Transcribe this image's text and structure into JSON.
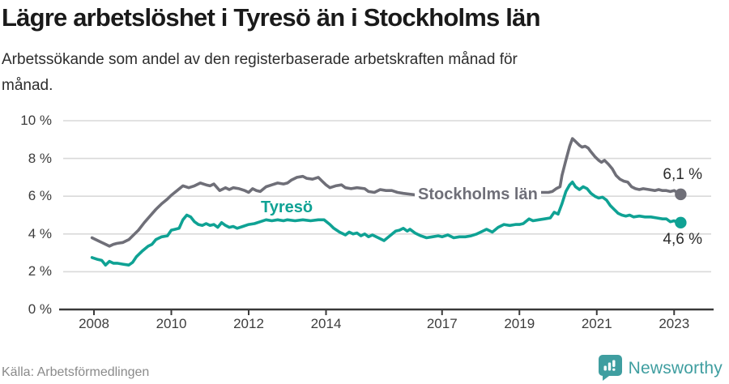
{
  "header": {
    "title": "Lägre arbetslöshet i Tyresö än i Stockholms län",
    "subtitle": "Arbetssökande som andel av den registerbaserade arbetskraften månad för\nmånad."
  },
  "chart_data": {
    "type": "line",
    "x_unit": "decimal_year",
    "ylim": [
      0,
      10
    ],
    "xlim": [
      2007.9,
      2023.9
    ],
    "grid": "horizontal",
    "y_ticks": [
      {
        "v": 0,
        "label": "0 %"
      },
      {
        "v": 2,
        "label": "2 %"
      },
      {
        "v": 4,
        "label": "4 %"
      },
      {
        "v": 6,
        "label": "6 %"
      },
      {
        "v": 8,
        "label": "8 %"
      },
      {
        "v": 10,
        "label": "10 %"
      }
    ],
    "x_ticks": [
      {
        "v": 2008,
        "label": "2008"
      },
      {
        "v": 2010,
        "label": "2010"
      },
      {
        "v": 2012,
        "label": "2012"
      },
      {
        "v": 2014,
        "label": "2014"
      },
      {
        "v": 2017,
        "label": "2017"
      },
      {
        "v": 2019,
        "label": "2019"
      },
      {
        "v": 2021,
        "label": "2021"
      },
      {
        "v": 2023,
        "label": "2023"
      }
    ],
    "series": [
      {
        "name": "Stockholms län",
        "color": "#6f6f78",
        "end_label": "6,1 %",
        "end_value": 6.1,
        "points": [
          [
            2007.95,
            3.8
          ],
          [
            2008.1,
            3.65
          ],
          [
            2008.25,
            3.5
          ],
          [
            2008.4,
            3.35
          ],
          [
            2008.5,
            3.45
          ],
          [
            2008.6,
            3.5
          ],
          [
            2008.75,
            3.55
          ],
          [
            2008.9,
            3.7
          ],
          [
            2009.0,
            3.9
          ],
          [
            2009.15,
            4.2
          ],
          [
            2009.3,
            4.6
          ],
          [
            2009.45,
            4.95
          ],
          [
            2009.6,
            5.3
          ],
          [
            2009.75,
            5.6
          ],
          [
            2009.9,
            5.85
          ],
          [
            2010.0,
            6.05
          ],
          [
            2010.15,
            6.3
          ],
          [
            2010.3,
            6.55
          ],
          [
            2010.45,
            6.45
          ],
          [
            2010.6,
            6.55
          ],
          [
            2010.75,
            6.7
          ],
          [
            2010.9,
            6.6
          ],
          [
            2011.0,
            6.55
          ],
          [
            2011.1,
            6.65
          ],
          [
            2011.25,
            6.3
          ],
          [
            2011.4,
            6.45
          ],
          [
            2011.5,
            6.35
          ],
          [
            2011.6,
            6.45
          ],
          [
            2011.75,
            6.4
          ],
          [
            2011.9,
            6.3
          ],
          [
            2012.0,
            6.2
          ],
          [
            2012.1,
            6.4
          ],
          [
            2012.2,
            6.3
          ],
          [
            2012.3,
            6.25
          ],
          [
            2012.45,
            6.5
          ],
          [
            2012.6,
            6.6
          ],
          [
            2012.75,
            6.7
          ],
          [
            2012.9,
            6.65
          ],
          [
            2013.0,
            6.7
          ],
          [
            2013.1,
            6.85
          ],
          [
            2013.25,
            7.0
          ],
          [
            2013.4,
            7.05
          ],
          [
            2013.5,
            6.95
          ],
          [
            2013.65,
            6.9
          ],
          [
            2013.8,
            7.0
          ],
          [
            2013.9,
            6.8
          ],
          [
            2014.0,
            6.6
          ],
          [
            2014.1,
            6.45
          ],
          [
            2014.25,
            6.55
          ],
          [
            2014.4,
            6.6
          ],
          [
            2014.5,
            6.45
          ],
          [
            2014.65,
            6.4
          ],
          [
            2014.8,
            6.45
          ],
          [
            2015.0,
            6.4
          ],
          [
            2015.1,
            6.25
          ],
          [
            2015.25,
            6.2
          ],
          [
            2015.4,
            6.35
          ],
          [
            2015.55,
            6.3
          ],
          [
            2015.7,
            6.3
          ],
          [
            2015.85,
            6.2
          ],
          [
            2016.0,
            6.15
          ],
          [
            2016.2,
            6.1
          ],
          [
            2016.4,
            6.05
          ],
          [
            2016.6,
            6.1
          ],
          [
            2016.8,
            6.05
          ],
          [
            2017.0,
            6.05
          ],
          [
            2017.2,
            6.0
          ],
          [
            2017.4,
            6.05
          ],
          [
            2017.6,
            6.0
          ],
          [
            2017.8,
            5.95
          ],
          [
            2018.0,
            6.0
          ],
          [
            2018.2,
            5.95
          ],
          [
            2018.4,
            6.0
          ],
          [
            2018.6,
            6.05
          ],
          [
            2018.8,
            6.1
          ],
          [
            2019.0,
            6.1
          ],
          [
            2019.2,
            6.15
          ],
          [
            2019.4,
            6.2
          ],
          [
            2019.6,
            6.2
          ],
          [
            2019.75,
            6.2
          ],
          [
            2019.85,
            6.25
          ],
          [
            2019.95,
            6.4
          ],
          [
            2020.05,
            6.5
          ],
          [
            2020.1,
            7.1
          ],
          [
            2020.2,
            7.9
          ],
          [
            2020.3,
            8.65
          ],
          [
            2020.37,
            9.05
          ],
          [
            2020.45,
            8.9
          ],
          [
            2020.55,
            8.7
          ],
          [
            2020.62,
            8.6
          ],
          [
            2020.7,
            8.65
          ],
          [
            2020.78,
            8.55
          ],
          [
            2020.85,
            8.35
          ],
          [
            2020.95,
            8.1
          ],
          [
            2021.05,
            7.9
          ],
          [
            2021.12,
            7.8
          ],
          [
            2021.2,
            7.9
          ],
          [
            2021.3,
            7.7
          ],
          [
            2021.4,
            7.45
          ],
          [
            2021.5,
            7.1
          ],
          [
            2021.6,
            6.9
          ],
          [
            2021.7,
            6.8
          ],
          [
            2021.8,
            6.75
          ],
          [
            2021.9,
            6.5
          ],
          [
            2022.0,
            6.4
          ],
          [
            2022.1,
            6.35
          ],
          [
            2022.2,
            6.4
          ],
          [
            2022.35,
            6.35
          ],
          [
            2022.5,
            6.3
          ],
          [
            2022.6,
            6.35
          ],
          [
            2022.7,
            6.3
          ],
          [
            2022.8,
            6.3
          ],
          [
            2022.9,
            6.25
          ],
          [
            2023.0,
            6.3
          ],
          [
            2023.08,
            6.2
          ],
          [
            2023.17,
            6.1
          ]
        ]
      },
      {
        "name": "Tyresö",
        "color": "#0fa294",
        "end_label": "4,6 %",
        "end_value": 4.6,
        "points": [
          [
            2007.95,
            2.75
          ],
          [
            2008.1,
            2.65
          ],
          [
            2008.2,
            2.6
          ],
          [
            2008.3,
            2.35
          ],
          [
            2008.4,
            2.55
          ],
          [
            2008.5,
            2.45
          ],
          [
            2008.6,
            2.45
          ],
          [
            2008.75,
            2.4
          ],
          [
            2008.9,
            2.35
          ],
          [
            2009.0,
            2.5
          ],
          [
            2009.1,
            2.8
          ],
          [
            2009.25,
            3.1
          ],
          [
            2009.4,
            3.35
          ],
          [
            2009.5,
            3.45
          ],
          [
            2009.6,
            3.7
          ],
          [
            2009.75,
            3.85
          ],
          [
            2009.9,
            3.9
          ],
          [
            2010.0,
            4.2
          ],
          [
            2010.1,
            4.25
          ],
          [
            2010.2,
            4.3
          ],
          [
            2010.3,
            4.75
          ],
          [
            2010.4,
            5.0
          ],
          [
            2010.5,
            4.9
          ],
          [
            2010.6,
            4.65
          ],
          [
            2010.7,
            4.5
          ],
          [
            2010.8,
            4.45
          ],
          [
            2010.9,
            4.55
          ],
          [
            2011.0,
            4.45
          ],
          [
            2011.1,
            4.5
          ],
          [
            2011.2,
            4.35
          ],
          [
            2011.3,
            4.6
          ],
          [
            2011.4,
            4.45
          ],
          [
            2011.5,
            4.35
          ],
          [
            2011.6,
            4.4
          ],
          [
            2011.7,
            4.3
          ],
          [
            2011.85,
            4.4
          ],
          [
            2012.0,
            4.5
          ],
          [
            2012.15,
            4.55
          ],
          [
            2012.3,
            4.65
          ],
          [
            2012.45,
            4.75
          ],
          [
            2012.6,
            4.7
          ],
          [
            2012.75,
            4.75
          ],
          [
            2012.9,
            4.7
          ],
          [
            2013.0,
            4.75
          ],
          [
            2013.2,
            4.7
          ],
          [
            2013.4,
            4.75
          ],
          [
            2013.6,
            4.7
          ],
          [
            2013.8,
            4.75
          ],
          [
            2013.95,
            4.75
          ],
          [
            2014.1,
            4.5
          ],
          [
            2014.2,
            4.3
          ],
          [
            2014.35,
            4.1
          ],
          [
            2014.5,
            3.95
          ],
          [
            2014.6,
            4.1
          ],
          [
            2014.7,
            4.0
          ],
          [
            2014.8,
            4.05
          ],
          [
            2014.9,
            3.9
          ],
          [
            2015.0,
            4.0
          ],
          [
            2015.1,
            3.85
          ],
          [
            2015.2,
            3.95
          ],
          [
            2015.35,
            3.8
          ],
          [
            2015.5,
            3.65
          ],
          [
            2015.65,
            3.9
          ],
          [
            2015.8,
            4.15
          ],
          [
            2015.9,
            4.2
          ],
          [
            2016.0,
            4.3
          ],
          [
            2016.1,
            4.15
          ],
          [
            2016.17,
            4.25
          ],
          [
            2016.3,
            4.05
          ],
          [
            2016.45,
            3.9
          ],
          [
            2016.6,
            3.8
          ],
          [
            2016.75,
            3.85
          ],
          [
            2016.9,
            3.9
          ],
          [
            2017.0,
            3.85
          ],
          [
            2017.15,
            3.95
          ],
          [
            2017.3,
            3.8
          ],
          [
            2017.45,
            3.85
          ],
          [
            2017.6,
            3.85
          ],
          [
            2017.75,
            3.9
          ],
          [
            2017.9,
            4.0
          ],
          [
            2018.0,
            4.1
          ],
          [
            2018.15,
            4.25
          ],
          [
            2018.3,
            4.1
          ],
          [
            2018.45,
            4.35
          ],
          [
            2018.6,
            4.5
          ],
          [
            2018.75,
            4.45
          ],
          [
            2018.9,
            4.5
          ],
          [
            2019.0,
            4.5
          ],
          [
            2019.1,
            4.55
          ],
          [
            2019.25,
            4.8
          ],
          [
            2019.35,
            4.7
          ],
          [
            2019.5,
            4.75
          ],
          [
            2019.65,
            4.8
          ],
          [
            2019.8,
            4.85
          ],
          [
            2019.9,
            5.15
          ],
          [
            2020.0,
            5.05
          ],
          [
            2020.1,
            5.6
          ],
          [
            2020.2,
            6.25
          ],
          [
            2020.3,
            6.6
          ],
          [
            2020.37,
            6.75
          ],
          [
            2020.45,
            6.5
          ],
          [
            2020.55,
            6.35
          ],
          [
            2020.65,
            6.5
          ],
          [
            2020.75,
            6.4
          ],
          [
            2020.85,
            6.15
          ],
          [
            2020.95,
            6.0
          ],
          [
            2021.05,
            5.9
          ],
          [
            2021.15,
            5.95
          ],
          [
            2021.25,
            5.8
          ],
          [
            2021.35,
            5.5
          ],
          [
            2021.45,
            5.3
          ],
          [
            2021.55,
            5.1
          ],
          [
            2021.65,
            5.0
          ],
          [
            2021.75,
            4.95
          ],
          [
            2021.85,
            5.0
          ],
          [
            2021.95,
            4.9
          ],
          [
            2022.1,
            4.95
          ],
          [
            2022.25,
            4.9
          ],
          [
            2022.4,
            4.9
          ],
          [
            2022.55,
            4.85
          ],
          [
            2022.7,
            4.8
          ],
          [
            2022.8,
            4.8
          ],
          [
            2022.9,
            4.65
          ],
          [
            2023.0,
            4.7
          ],
          [
            2023.08,
            4.6
          ],
          [
            2023.17,
            4.6
          ]
        ]
      }
    ],
    "colors": {
      "grid": "#d9d9d9",
      "axis": "#3a3a3a",
      "tick_text": "#3d3d3d"
    }
  },
  "footer": {
    "source": "Källa: Arbetsförmedlingen",
    "brand": "Newsworthy",
    "brand_color": "#3f9ea0"
  }
}
